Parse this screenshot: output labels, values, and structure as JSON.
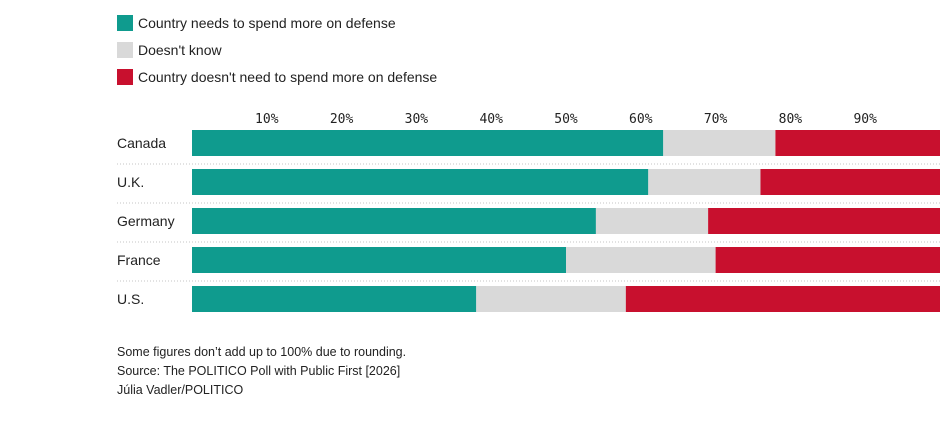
{
  "chart_data": {
    "type": "bar",
    "orientation": "horizontal",
    "stacked": true,
    "categories": [
      "Canada",
      "U.K.",
      "Germany",
      "France",
      "U.S."
    ],
    "series": [
      {
        "name": "Country needs to spend more on defense",
        "color": "#0f9b8e",
        "values": [
          63,
          61,
          54,
          50,
          38
        ]
      },
      {
        "name": "Doesn't know",
        "color": "#d9d9d9",
        "values": [
          15,
          15,
          15,
          20,
          20
        ]
      },
      {
        "name": "Country doesn't need to spend more on defense",
        "color": "#c8102e",
        "values": [
          22,
          24,
          31,
          30,
          42
        ]
      }
    ],
    "xticks": [
      "10%",
      "20%",
      "30%",
      "40%",
      "50%",
      "60%",
      "70%",
      "80%",
      "90%"
    ],
    "xtick_values": [
      10,
      20,
      30,
      40,
      50,
      60,
      70,
      80,
      90
    ],
    "xlim": [
      0,
      100
    ],
    "legend_position": "top-left",
    "grid": "dotted row separators"
  },
  "notes": {
    "rounding": "Some figures don’t add up to 100% due to rounding.",
    "source": "Source: The POLITICO Poll with Public First [2026]",
    "credit": "Júlia Vadler/POLITICO"
  }
}
